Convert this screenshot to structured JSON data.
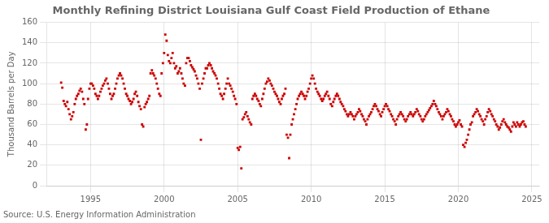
{
  "chart_data": {
    "type": "scatter",
    "title": "Monthly Refining District Louisiana Gulf Coast Field Production of Ethane",
    "ylabel": "Thousand Barrels per Day",
    "source": "Source: U.S. Energy Information Administration",
    "color": "#cc0000",
    "marker": "square",
    "grid": true,
    "xlim": [
      1992.0,
      2025.5
    ],
    "xticks": [
      1995,
      2000,
      2005,
      2010,
      2015,
      2020,
      2025
    ],
    "ylim": [
      0,
      160
    ],
    "yticks": [
      0,
      20,
      40,
      60,
      80,
      100,
      120,
      140,
      160
    ],
    "x": [
      1993.0,
      1993.08,
      1993.17,
      1993.25,
      1993.33,
      1993.42,
      1993.5,
      1993.58,
      1993.67,
      1993.75,
      1993.83,
      1993.92,
      1994.0,
      1994.08,
      1994.17,
      1994.25,
      1994.33,
      1994.42,
      1994.5,
      1994.58,
      1994.67,
      1994.75,
      1994.83,
      1994.92,
      1995.0,
      1995.08,
      1995.17,
      1995.25,
      1995.33,
      1995.42,
      1995.5,
      1995.58,
      1995.67,
      1995.75,
      1995.83,
      1995.92,
      1996.0,
      1996.08,
      1996.17,
      1996.25,
      1996.33,
      1996.42,
      1996.5,
      1996.58,
      1996.67,
      1996.75,
      1996.83,
      1996.92,
      1997.0,
      1997.08,
      1997.17,
      1997.25,
      1997.33,
      1997.42,
      1997.5,
      1997.58,
      1997.67,
      1997.75,
      1997.83,
      1997.92,
      1998.0,
      1998.08,
      1998.17,
      1998.25,
      1998.33,
      1998.42,
      1998.5,
      1998.58,
      1998.67,
      1998.75,
      1998.83,
      1998.92,
      1999.0,
      1999.08,
      1999.17,
      1999.25,
      1999.33,
      1999.42,
      1999.5,
      1999.58,
      1999.67,
      1999.75,
      1999.83,
      1999.92,
      2000.0,
      2000.08,
      2000.17,
      2000.25,
      2000.33,
      2000.42,
      2000.5,
      2000.58,
      2000.67,
      2000.75,
      2000.83,
      2000.92,
      2001.0,
      2001.08,
      2001.17,
      2001.25,
      2001.33,
      2001.42,
      2001.5,
      2001.58,
      2001.67,
      2001.75,
      2001.83,
      2001.92,
      2002.0,
      2002.08,
      2002.17,
      2002.25,
      2002.33,
      2002.42,
      2002.5,
      2002.58,
      2002.67,
      2002.75,
      2002.83,
      2002.92,
      2003.0,
      2003.08,
      2003.17,
      2003.25,
      2003.33,
      2003.42,
      2003.5,
      2003.58,
      2003.67,
      2003.75,
      2003.83,
      2003.92,
      2004.0,
      2004.08,
      2004.17,
      2004.25,
      2004.33,
      2004.42,
      2004.5,
      2004.58,
      2004.67,
      2004.75,
      2004.83,
      2004.92,
      2005.0,
      2005.08,
      2005.17,
      2005.25,
      2005.33,
      2005.42,
      2005.5,
      2005.58,
      2005.67,
      2005.75,
      2005.83,
      2005.92,
      2006.0,
      2006.08,
      2006.17,
      2006.25,
      2006.33,
      2006.42,
      2006.5,
      2006.58,
      2006.67,
      2006.75,
      2006.83,
      2006.92,
      2007.0,
      2007.08,
      2007.17,
      2007.25,
      2007.33,
      2007.42,
      2007.5,
      2007.58,
      2007.67,
      2007.75,
      2007.83,
      2007.92,
      2008.0,
      2008.08,
      2008.17,
      2008.25,
      2008.33,
      2008.42,
      2008.5,
      2008.58,
      2008.67,
      2008.75,
      2008.83,
      2008.92,
      2009.0,
      2009.08,
      2009.17,
      2009.25,
      2009.33,
      2009.42,
      2009.5,
      2009.58,
      2009.67,
      2009.75,
      2009.83,
      2009.92,
      2010.0,
      2010.08,
      2010.17,
      2010.25,
      2010.33,
      2010.42,
      2010.5,
      2010.58,
      2010.67,
      2010.75,
      2010.83,
      2010.92,
      2011.0,
      2011.08,
      2011.17,
      2011.25,
      2011.33,
      2011.42,
      2011.5,
      2011.58,
      2011.67,
      2011.75,
      2011.83,
      2011.92,
      2012.0,
      2012.08,
      2012.17,
      2012.25,
      2012.33,
      2012.42,
      2012.5,
      2012.58,
      2012.67,
      2012.75,
      2012.83,
      2012.92,
      2013.0,
      2013.08,
      2013.17,
      2013.25,
      2013.33,
      2013.42,
      2013.5,
      2013.58,
      2013.67,
      2013.75,
      2013.83,
      2013.92,
      2014.0,
      2014.08,
      2014.17,
      2014.25,
      2014.33,
      2014.42,
      2014.5,
      2014.58,
      2014.67,
      2014.75,
      2014.83,
      2014.92,
      2015.0,
      2015.08,
      2015.17,
      2015.25,
      2015.33,
      2015.42,
      2015.5,
      2015.58,
      2015.67,
      2015.75,
      2015.83,
      2015.92,
      2016.0,
      2016.08,
      2016.17,
      2016.25,
      2016.33,
      2016.42,
      2016.5,
      2016.58,
      2016.67,
      2016.75,
      2016.83,
      2016.92,
      2017.0,
      2017.08,
      2017.17,
      2017.25,
      2017.33,
      2017.42,
      2017.5,
      2017.58,
      2017.67,
      2017.75,
      2017.83,
      2017.92,
      2018.0,
      2018.08,
      2018.17,
      2018.25,
      2018.33,
      2018.42,
      2018.5,
      2018.58,
      2018.67,
      2018.75,
      2018.83,
      2018.92,
      2019.0,
      2019.08,
      2019.17,
      2019.25,
      2019.33,
      2019.42,
      2019.5,
      2019.58,
      2019.67,
      2019.75,
      2019.83,
      2019.92,
      2020.0,
      2020.08,
      2020.17,
      2020.25,
      2020.33,
      2020.42,
      2020.5,
      2020.58,
      2020.67,
      2020.75,
      2020.83,
      2020.92,
      2021.0,
      2021.08,
      2021.17,
      2021.25,
      2021.33,
      2021.42,
      2021.5,
      2021.58,
      2021.67,
      2021.75,
      2021.83,
      2021.92,
      2022.0,
      2022.08,
      2022.17,
      2022.25,
      2022.33,
      2022.42,
      2022.5,
      2022.58,
      2022.67,
      2022.75,
      2022.83,
      2022.92,
      2023.0,
      2023.08,
      2023.17,
      2023.25,
      2023.33,
      2023.42,
      2023.5,
      2023.58,
      2023.67,
      2023.75,
      2023.83,
      2023.92,
      2024.0,
      2024.08,
      2024.17,
      2024.25,
      2024.33,
      2024.42,
      2024.5,
      2024.58
    ],
    "values": [
      101,
      96,
      83,
      80,
      78,
      82,
      75,
      70,
      65,
      68,
      72,
      80,
      85,
      88,
      90,
      93,
      95,
      92,
      85,
      80,
      55,
      60,
      85,
      95,
      100,
      100,
      98,
      95,
      90,
      88,
      85,
      88,
      92,
      95,
      98,
      100,
      103,
      105,
      100,
      95,
      90,
      85,
      88,
      90,
      95,
      100,
      105,
      108,
      110,
      108,
      105,
      100,
      95,
      90,
      88,
      85,
      83,
      80,
      82,
      85,
      90,
      92,
      88,
      82,
      78,
      75,
      60,
      58,
      77,
      80,
      82,
      85,
      88,
      110,
      113,
      110,
      108,
      105,
      100,
      95,
      90,
      88,
      110,
      120,
      130,
      148,
      142,
      128,
      122,
      120,
      125,
      130,
      120,
      115,
      117,
      110,
      112,
      115,
      110,
      105,
      100,
      98,
      120,
      125,
      125,
      122,
      118,
      116,
      114,
      112,
      108,
      105,
      100,
      95,
      45,
      100,
      105,
      110,
      115,
      115,
      118,
      120,
      118,
      115,
      112,
      110,
      108,
      105,
      100,
      95,
      90,
      88,
      85,
      90,
      95,
      100,
      105,
      100,
      98,
      95,
      92,
      88,
      85,
      80,
      37,
      35,
      38,
      17,
      65,
      67,
      70,
      72,
      68,
      65,
      62,
      60,
      85,
      88,
      90,
      88,
      85,
      83,
      80,
      78,
      85,
      90,
      95,
      100,
      102,
      105,
      103,
      100,
      98,
      95,
      92,
      90,
      88,
      85,
      82,
      80,
      85,
      88,
      90,
      95,
      50,
      47,
      27,
      50,
      60,
      65,
      70,
      75,
      80,
      85,
      88,
      90,
      92,
      90,
      88,
      85,
      88,
      92,
      95,
      100,
      105,
      108,
      105,
      100,
      95,
      92,
      90,
      88,
      85,
      83,
      85,
      88,
      90,
      92,
      88,
      85,
      80,
      78,
      82,
      85,
      88,
      90,
      88,
      85,
      82,
      80,
      78,
      75,
      73,
      70,
      68,
      70,
      72,
      70,
      68,
      65,
      68,
      70,
      72,
      75,
      73,
      70,
      68,
      65,
      63,
      60,
      65,
      68,
      70,
      72,
      75,
      78,
      80,
      78,
      75,
      73,
      70,
      68,
      72,
      75,
      78,
      80,
      78,
      75,
      73,
      70,
      68,
      65,
      63,
      60,
      65,
      68,
      70,
      72,
      70,
      68,
      65,
      63,
      65,
      68,
      70,
      72,
      70,
      68,
      70,
      72,
      75,
      73,
      70,
      68,
      65,
      63,
      65,
      68,
      70,
      72,
      74,
      76,
      78,
      80,
      83,
      80,
      78,
      75,
      72,
      70,
      68,
      65,
      68,
      70,
      72,
      75,
      73,
      70,
      68,
      65,
      63,
      60,
      58,
      60,
      62,
      64,
      60,
      58,
      40,
      38,
      42,
      45,
      50,
      55,
      60,
      62,
      68,
      70,
      72,
      75,
      73,
      70,
      68,
      65,
      63,
      60,
      65,
      68,
      72,
      75,
      73,
      70,
      68,
      65,
      63,
      60,
      58,
      55,
      57,
      60,
      63,
      65,
      62,
      60,
      58,
      57,
      55,
      53,
      58,
      62,
      60,
      58,
      62,
      60,
      58,
      60,
      62,
      63,
      60,
      58
    ]
  }
}
